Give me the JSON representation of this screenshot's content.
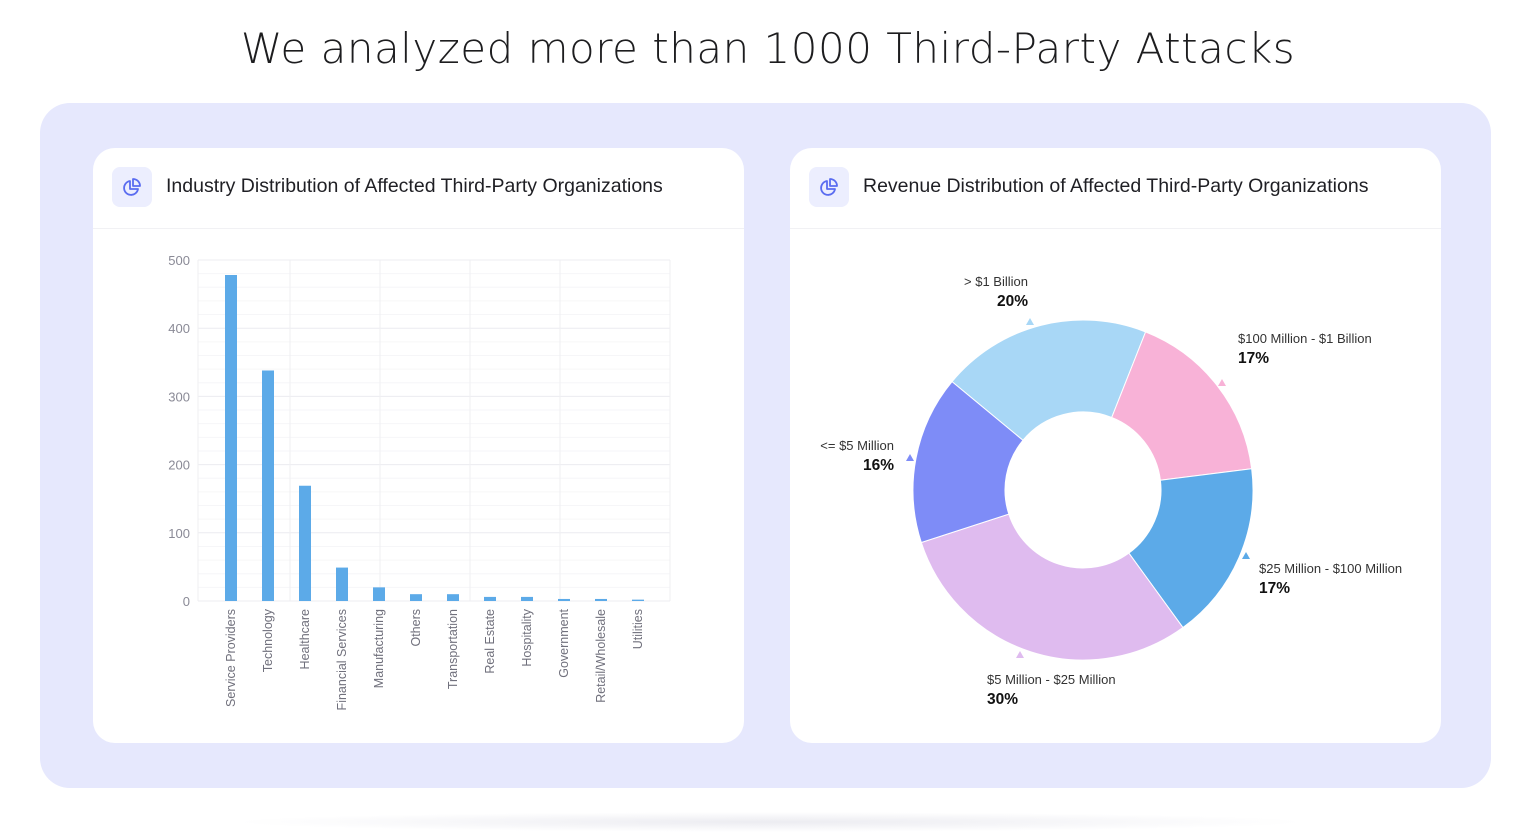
{
  "page_title": "We analyzed more than 1000 Third-Party Attacks",
  "colors": {
    "panel_bg": "#e6e8fd",
    "bar": "#5caae8",
    "icon": "#5a6cf0"
  },
  "chart_data": [
    {
      "type": "bar",
      "title": "Industry Distribution of Affected Third-Party Organizations",
      "icon": "pie-chart-icon",
      "categories": [
        "Service Providers",
        "Technology",
        "Healthcare",
        "Financial Services",
        "Manufacturing",
        "Others",
        "Transportation",
        "Real Estate",
        "Hospitality",
        "Government",
        "Retail/Wholesale",
        "Utilities"
      ],
      "values": [
        478,
        338,
        169,
        49,
        20,
        10,
        10,
        6,
        6,
        3,
        3,
        2
      ],
      "ylim": [
        0,
        500
      ],
      "yticks": [
        "0",
        "100",
        "200",
        "300",
        "400",
        "500"
      ],
      "grid": true,
      "xlabel": "",
      "ylabel": ""
    },
    {
      "type": "pie",
      "donut": true,
      "title": "Revenue Distribution of Affected Third-Party Organizations",
      "icon": "pie-chart-icon",
      "slices": [
        {
          "label": "> $1 Billion",
          "value": 20,
          "display": "20%",
          "color": "#a8d7f6"
        },
        {
          "label": "$100 Million - $1 Billion",
          "value": 17,
          "display": "17%",
          "color": "#f8b2d7"
        },
        {
          "label": "$25 Million - $100 Million",
          "value": 17,
          "display": "17%",
          "color": "#5caae8"
        },
        {
          "label": "$5 Million - $25 Million",
          "value": 30,
          "display": "30%",
          "color": "#dfbbef"
        },
        {
          "label": "<= $5 Million",
          "value": 16,
          "display": "16%",
          "color": "#7e8cf7"
        }
      ]
    }
  ]
}
